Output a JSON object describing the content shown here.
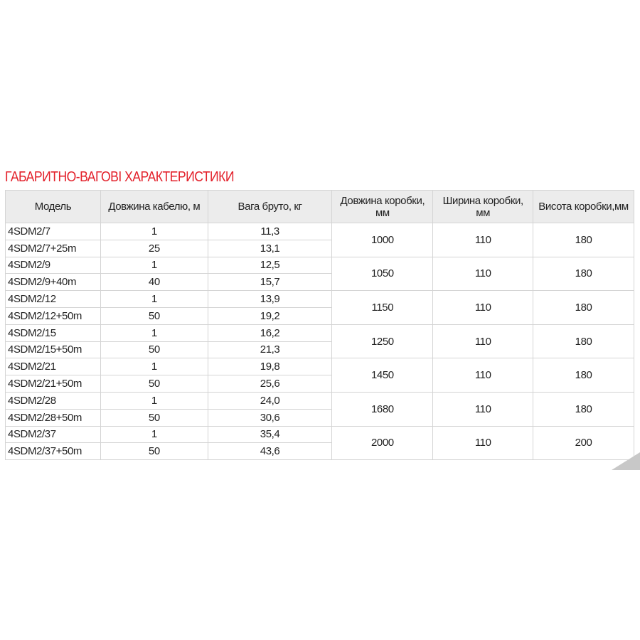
{
  "title": "ГАБАРИТНО-ВАГОВІ ХАРАКТЕРИСТИКИ",
  "headers": [
    "Модель",
    "Довжина кабелю, м",
    "Вага бруто, кг",
    "Довжина коробки, мм",
    "Ширина коробки, мм",
    "Висота коробки,мм"
  ],
  "groups": [
    {
      "rows": [
        {
          "model": "4SDM2/7",
          "cable": "1",
          "weight": "11,3"
        },
        {
          "model": "4SDM2/7+25m",
          "cable": "25",
          "weight": "13,1"
        }
      ],
      "length": "1000",
      "width": "110",
      "height": "180"
    },
    {
      "rows": [
        {
          "model": "4SDM2/9",
          "cable": "1",
          "weight": "12,5"
        },
        {
          "model": "4SDM2/9+40m",
          "cable": "40",
          "weight": "15,7"
        }
      ],
      "length": "1050",
      "width": "110",
      "height": "180"
    },
    {
      "rows": [
        {
          "model": "4SDM2/12",
          "cable": "1",
          "weight": "13,9"
        },
        {
          "model": "4SDM2/12+50m",
          "cable": "50",
          "weight": "19,2"
        }
      ],
      "length": "1150",
      "width": "110",
      "height": "180"
    },
    {
      "rows": [
        {
          "model": "4SDM2/15",
          "cable": "1",
          "weight": "16,2"
        },
        {
          "model": "4SDM2/15+50m",
          "cable": "50",
          "weight": "21,3"
        }
      ],
      "length": "1250",
      "width": "110",
      "height": "180"
    },
    {
      "rows": [
        {
          "model": "4SDM2/21",
          "cable": "1",
          "weight": "19,8"
        },
        {
          "model": "4SDM2/21+50m",
          "cable": "50",
          "weight": "25,6"
        }
      ],
      "length": "1450",
      "width": "110",
      "height": "180"
    },
    {
      "rows": [
        {
          "model": "4SDM2/28",
          "cable": "1",
          "weight": "24,0"
        },
        {
          "model": "4SDM2/28+50m",
          "cable": "50",
          "weight": "30,6"
        }
      ],
      "length": "1680",
      "width": "110",
      "height": "180"
    },
    {
      "rows": [
        {
          "model": "4SDM2/37",
          "cable": "1",
          "weight": "35,4"
        },
        {
          "model": "4SDM2/37+50m",
          "cable": "50",
          "weight": "43,6"
        }
      ],
      "length": "2000",
      "width": "110",
      "height": "200"
    }
  ],
  "colors": {
    "title": "#e3212b",
    "header_bg": "#ececec",
    "border": "#d4d4d4"
  }
}
